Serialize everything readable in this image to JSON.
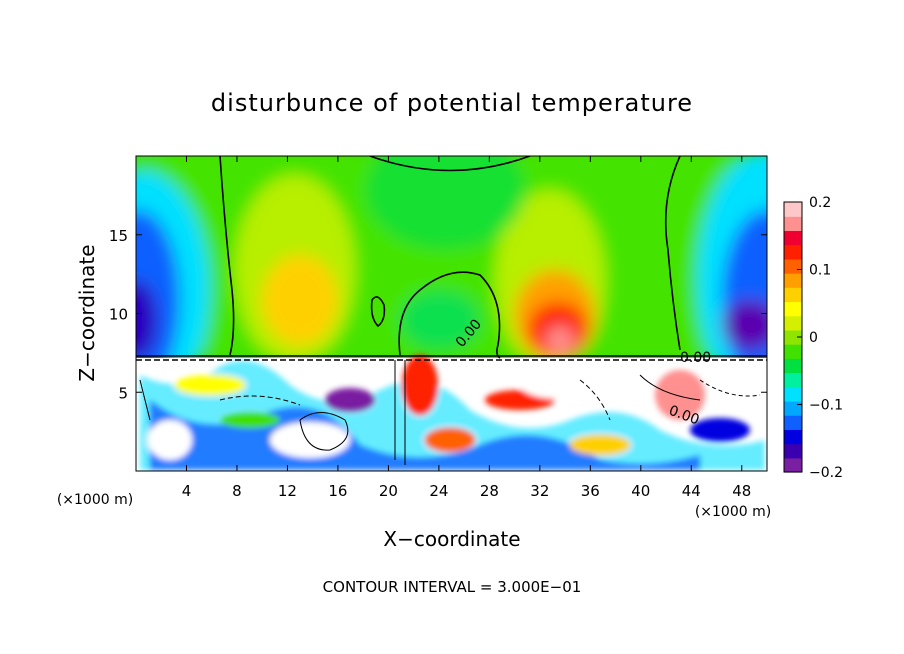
{
  "chart_data": {
    "type": "heatmap",
    "title": "disturbunce of potential temperature",
    "xlabel": "X−coordinate",
    "ylabel": "Z−coordinate",
    "x_unit_label": "(×1000 m)",
    "x_unit_label_right": "(×1000 m)",
    "footer": "CONTOUR INTERVAL = 3.000E−01",
    "contour_label": "0.00",
    "xlim": [
      0,
      50
    ],
    "ylim": [
      0,
      20
    ],
    "x_ticks": [
      4,
      8,
      12,
      16,
      20,
      24,
      28,
      32,
      36,
      40,
      44,
      48
    ],
    "x_tick_labels": [
      "4",
      "8",
      "12",
      "16",
      "20",
      "24",
      "28",
      "32",
      "36",
      "40",
      "44",
      "48"
    ],
    "y_ticks": [
      5,
      10,
      15
    ],
    "y_tick_labels": [
      "5",
      "10",
      "15"
    ],
    "colorbar": {
      "range": [
        -0.2,
        0.2
      ],
      "ticks": [
        0.2,
        0.1,
        0,
        -0.1,
        -0.2
      ],
      "tick_labels": [
        "0.2",
        "0.1",
        "0",
        "−0.1",
        "−0.2"
      ],
      "colors": [
        "#7a1fa2",
        "#3a00b0",
        "#0000e0",
        "#1060ff",
        "#00a8ff",
        "#00e0ff",
        "#00f0a0",
        "#00e040",
        "#40e000",
        "#8ee600",
        "#d4f000",
        "#ffff00",
        "#ffd000",
        "#ffa000",
        "#ff6000",
        "#ff2000",
        "#f00030",
        "#ff9090",
        "#ffc8c8"
      ]
    }
  }
}
